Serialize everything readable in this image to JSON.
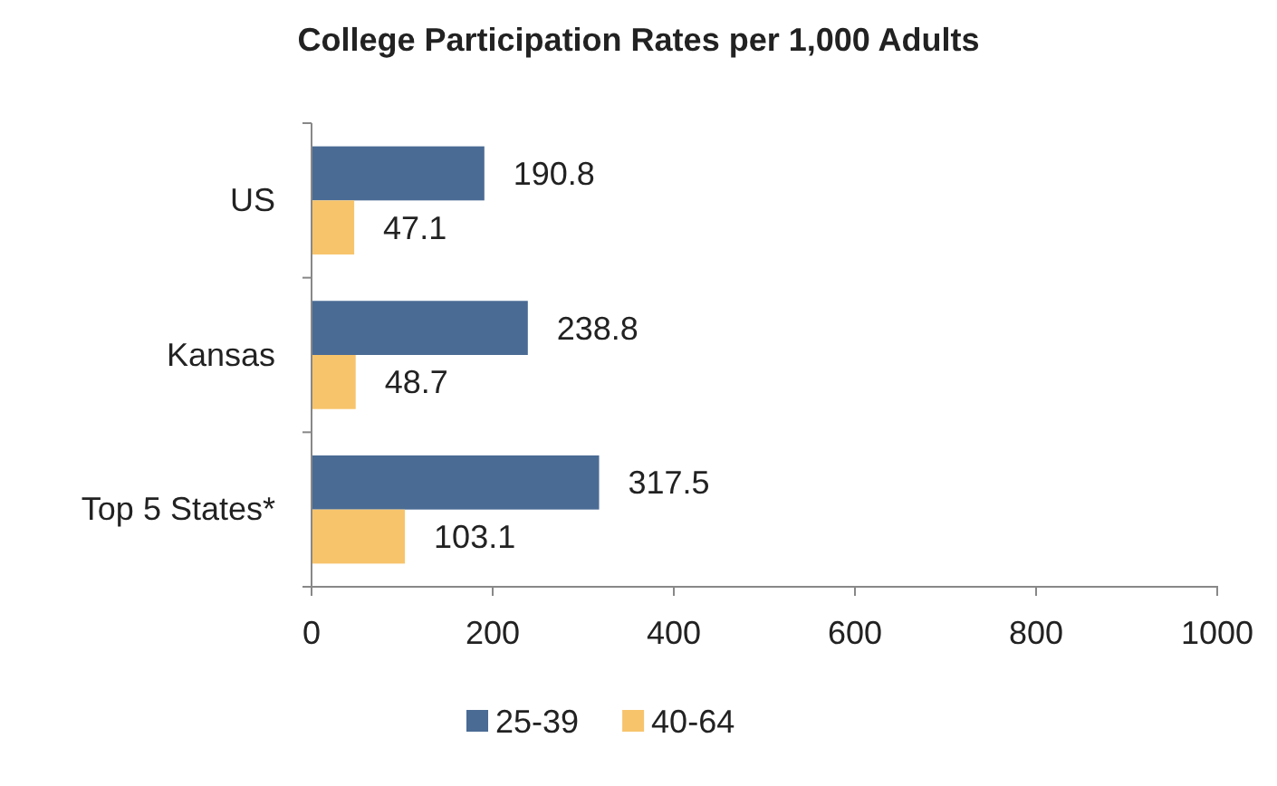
{
  "chart_data": {
    "type": "bar",
    "orientation": "horizontal",
    "title": "College Participation Rates per 1,000 Adults",
    "categories": [
      "US",
      "Kansas",
      "Top 5 States*"
    ],
    "series": [
      {
        "name": "25-39",
        "color": "#4a6b94",
        "values": [
          190.8,
          238.8,
          317.5
        ]
      },
      {
        "name": "40-64",
        "color": "#f7c46c",
        "values": [
          47.1,
          48.7,
          103.1
        ]
      }
    ],
    "xlim": [
      0,
      1000
    ],
    "xticks": [
      0,
      200,
      400,
      600,
      800,
      1000
    ],
    "data_labels": true,
    "grid": false,
    "legend": "bottom"
  }
}
